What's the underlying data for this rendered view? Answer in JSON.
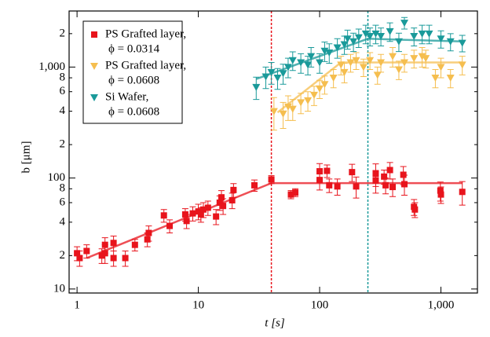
{
  "chart_data": {
    "type": "scatter",
    "xlabel": "t [s]",
    "ylabel": "b [μm]",
    "xlog": true,
    "ylog": true,
    "xlim": [
      0.86,
      2000
    ],
    "ylim": [
      9.2,
      3200
    ],
    "xticks": [
      1,
      10,
      100,
      {
        "value": 1000,
        "label": "1,000"
      }
    ],
    "yticks": [
      10,
      {
        "value": 20,
        "label": "2"
      },
      {
        "value": 40,
        "label": "4"
      },
      {
        "value": 60,
        "label": "6"
      },
      {
        "value": 80,
        "label": "8"
      },
      100,
      {
        "value": 200,
        "label": "2"
      },
      {
        "value": 400,
        "label": "4"
      },
      {
        "value": 600,
        "label": "6"
      },
      {
        "value": 800,
        "label": "8"
      },
      {
        "value": 1000,
        "label": "1,000"
      },
      {
        "value": 2000,
        "label": "2"
      }
    ],
    "legend": "upper left",
    "vlines": [
      {
        "x": 40,
        "color": "#e8141c"
      },
      {
        "x": 250,
        "color": "#1a9a9a"
      }
    ],
    "series": [
      {
        "name": "PS Grafted layer,",
        "phi": "ϕ = 0.0314",
        "color": "#e8141c",
        "marker": "square",
        "x": [
          1.0,
          1.05,
          1.2,
          1.6,
          1.7,
          1.7,
          2.0,
          2.0,
          2.5,
          3.0,
          3.8,
          3.9,
          5.2,
          5.8,
          7.8,
          8.0,
          9.0,
          10,
          10.5,
          11,
          12,
          14,
          15,
          15.5,
          16,
          19,
          19.5,
          29,
          40,
          58,
          63,
          100,
          100,
          115,
          120,
          140,
          185,
          200,
          290,
          290,
          340,
          350,
          380,
          400,
          490,
          500,
          600,
          610,
          990,
          1000,
          1500
        ],
        "values": [
          21,
          19,
          22,
          20,
          21,
          25,
          26,
          19,
          19,
          25,
          28,
          32,
          46,
          37,
          47,
          41,
          48,
          50,
          47,
          52,
          54,
          45,
          60,
          67,
          56,
          63,
          78,
          86,
          97,
          71,
          74,
          115,
          96,
          116,
          86,
          84,
          113,
          84,
          109,
          95,
          103,
          86,
          118,
          83,
          107,
          88,
          55,
          52,
          77,
          71,
          75
        ],
        "errors": [
          3,
          3,
          3,
          3,
          4,
          4,
          4,
          3,
          3,
          3,
          4,
          5,
          6,
          5,
          6,
          6,
          7,
          8,
          7,
          8,
          8,
          7,
          9,
          10,
          9,
          10,
          11,
          10,
          8,
          6,
          6,
          20,
          18,
          15,
          12,
          14,
          20,
          18,
          25,
          22,
          15,
          14,
          20,
          15,
          20,
          18,
          9,
          8,
          15,
          12,
          18
        ],
        "fit": {
          "x": [
            1.2,
            40,
            1500
          ],
          "y": [
            19,
            90,
            90
          ]
        }
      },
      {
        "name": "PS Grafted layer,",
        "phi": "ϕ = 0.0608",
        "color": "#f5be4f",
        "marker": "triangle-down",
        "x": [
          42,
          50,
          55,
          60,
          70,
          80,
          90,
          100,
          110,
          130,
          150,
          160,
          180,
          200,
          230,
          260,
          300,
          320,
          400,
          450,
          500,
          600,
          700,
          750,
          900,
          1000,
          1200,
          1500
        ],
        "values": [
          400,
          380,
          440,
          420,
          480,
          500,
          560,
          640,
          700,
          800,
          1050,
          900,
          1100,
          1150,
          1000,
          1150,
          850,
          1100,
          1250,
          950,
          1100,
          1200,
          1250,
          1200,
          800,
          1000,
          800,
          1050
        ],
        "errors": [
          130,
          100,
          110,
          90,
          100,
          100,
          110,
          120,
          130,
          150,
          200,
          180,
          200,
          200,
          180,
          200,
          150,
          200,
          250,
          180,
          200,
          220,
          250,
          220,
          150,
          200,
          150,
          200
        ],
        "fit": {
          "x": [
            45,
            150,
            1500
          ],
          "y": [
            390,
            1100,
            1100
          ]
        }
      },
      {
        "name": "Si Wafer,",
        "phi": "ϕ = 0.0608",
        "color": "#1a9a9a",
        "marker": "triangle-down",
        "x": [
          30,
          36,
          40,
          45,
          50,
          55,
          60,
          70,
          80,
          85,
          100,
          110,
          120,
          140,
          160,
          170,
          190,
          210,
          240,
          260,
          290,
          320,
          380,
          450,
          500,
          600,
          700,
          800,
          1000,
          1200,
          1500
        ],
        "values": [
          660,
          820,
          900,
          800,
          880,
          1000,
          1150,
          1100,
          1050,
          1250,
          1100,
          1400,
          1350,
          1500,
          1600,
          1800,
          1700,
          1850,
          2000,
          1900,
          2000,
          1900,
          2100,
          1700,
          2500,
          1900,
          2000,
          2000,
          1800,
          1700,
          1650
        ],
        "errors": [
          150,
          180,
          200,
          170,
          180,
          200,
          220,
          220,
          200,
          250,
          220,
          280,
          270,
          300,
          300,
          350,
          320,
          350,
          380,
          350,
          380,
          350,
          400,
          320,
          300,
          350,
          380,
          380,
          320,
          300,
          280
        ],
        "fit": {
          "x": [
            30,
            250,
            1500
          ],
          "y": [
            780,
            1800,
            1700
          ]
        }
      }
    ]
  }
}
